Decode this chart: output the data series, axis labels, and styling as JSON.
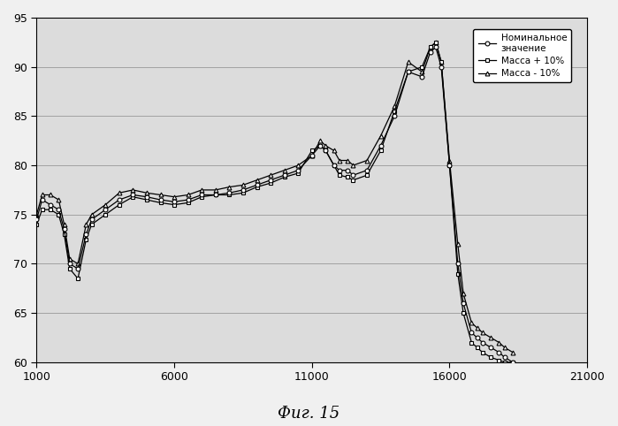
{
  "title": "Фиг. 15",
  "xlim": [
    1000,
    21000
  ],
  "ylim": [
    60,
    95
  ],
  "xticks": [
    1000,
    6000,
    11000,
    16000,
    21000
  ],
  "yticks": [
    60,
    65,
    70,
    75,
    80,
    85,
    90,
    95
  ],
  "legend_labels": [
    "Номинальное\nзначение",
    "Масса + 10%",
    "Масса - 10%"
  ],
  "nominal_x": [
    1000,
    1200,
    1500,
    1800,
    2000,
    2200,
    2500,
    2800,
    3000,
    3500,
    4000,
    4500,
    5000,
    5500,
    6000,
    6500,
    7000,
    7500,
    8000,
    8500,
    9000,
    9500,
    10000,
    10500,
    11000,
    11300,
    11500,
    11800,
    12000,
    12300,
    12500,
    13000,
    13500,
    14000,
    14500,
    15000,
    15300,
    15500,
    15700,
    16000,
    16300,
    16500,
    16800,
    17000,
    17200,
    17500,
    17800,
    18000,
    18300
  ],
  "nominal_y": [
    74.5,
    76.5,
    76.0,
    75.5,
    73.5,
    70.0,
    69.5,
    73.0,
    74.5,
    75.5,
    76.5,
    77.0,
    76.8,
    76.5,
    76.3,
    76.5,
    77.0,
    77.0,
    77.2,
    77.5,
    78.0,
    78.5,
    79.0,
    79.5,
    81.0,
    82.0,
    81.5,
    80.0,
    79.5,
    79.5,
    79.0,
    79.5,
    82.0,
    85.0,
    89.5,
    89.0,
    91.5,
    92.0,
    90.0,
    80.0,
    70.0,
    66.0,
    63.0,
    62.5,
    62.0,
    61.5,
    61.0,
    60.5,
    60.0
  ],
  "mass_plus_x": [
    1000,
    1200,
    1500,
    1800,
    2000,
    2200,
    2500,
    2800,
    3000,
    3500,
    4000,
    4500,
    5000,
    5500,
    6000,
    6500,
    7000,
    7500,
    8000,
    8500,
    9000,
    9500,
    10000,
    10500,
    11000,
    11300,
    11500,
    11800,
    12000,
    12300,
    12500,
    13000,
    13500,
    14000,
    14500,
    15000,
    15300,
    15500,
    15700,
    16000,
    16300,
    16500,
    16800,
    17000,
    17200,
    17500,
    17800,
    18000,
    18300
  ],
  "mass_plus_y": [
    74.0,
    75.5,
    75.5,
    75.0,
    73.0,
    69.5,
    68.5,
    72.5,
    74.0,
    75.0,
    76.0,
    76.8,
    76.5,
    76.2,
    76.0,
    76.2,
    76.8,
    77.0,
    77.0,
    77.2,
    77.8,
    78.2,
    78.8,
    79.2,
    81.5,
    82.0,
    81.5,
    80.0,
    79.0,
    78.8,
    78.5,
    79.0,
    81.5,
    85.5,
    89.5,
    90.0,
    92.0,
    92.5,
    90.5,
    80.0,
    69.0,
    65.0,
    62.0,
    61.5,
    61.0,
    60.5,
    60.2,
    60.0,
    60.0
  ],
  "mass_minus_x": [
    1000,
    1200,
    1500,
    1800,
    2000,
    2200,
    2500,
    2800,
    3000,
    3500,
    4000,
    4500,
    5000,
    5500,
    6000,
    6500,
    7000,
    7500,
    8000,
    8500,
    9000,
    9500,
    10000,
    10500,
    11000,
    11300,
    11500,
    11800,
    12000,
    12300,
    12500,
    13000,
    13500,
    14000,
    14500,
    15000,
    15300,
    15500,
    15700,
    16000,
    16300,
    16500,
    16800,
    17000,
    17200,
    17500,
    17800,
    18000,
    18300
  ],
  "mass_minus_y": [
    75.0,
    77.0,
    77.0,
    76.5,
    74.0,
    70.5,
    70.0,
    74.0,
    75.0,
    76.0,
    77.2,
    77.5,
    77.2,
    77.0,
    76.8,
    77.0,
    77.5,
    77.5,
    77.8,
    78.0,
    78.5,
    79.0,
    79.5,
    80.0,
    81.0,
    82.5,
    82.0,
    81.5,
    80.5,
    80.5,
    80.0,
    80.5,
    83.0,
    86.0,
    90.5,
    89.5,
    92.0,
    92.5,
    90.5,
    80.5,
    72.0,
    67.0,
    64.0,
    63.5,
    63.0,
    62.5,
    62.0,
    61.5,
    61.0
  ],
  "line_color": "#000000",
  "background_color": "#f0f0f0",
  "plot_bg_color": "#dcdcdc",
  "marker_size": 3.5,
  "linewidth": 0.9,
  "markevery": 3
}
